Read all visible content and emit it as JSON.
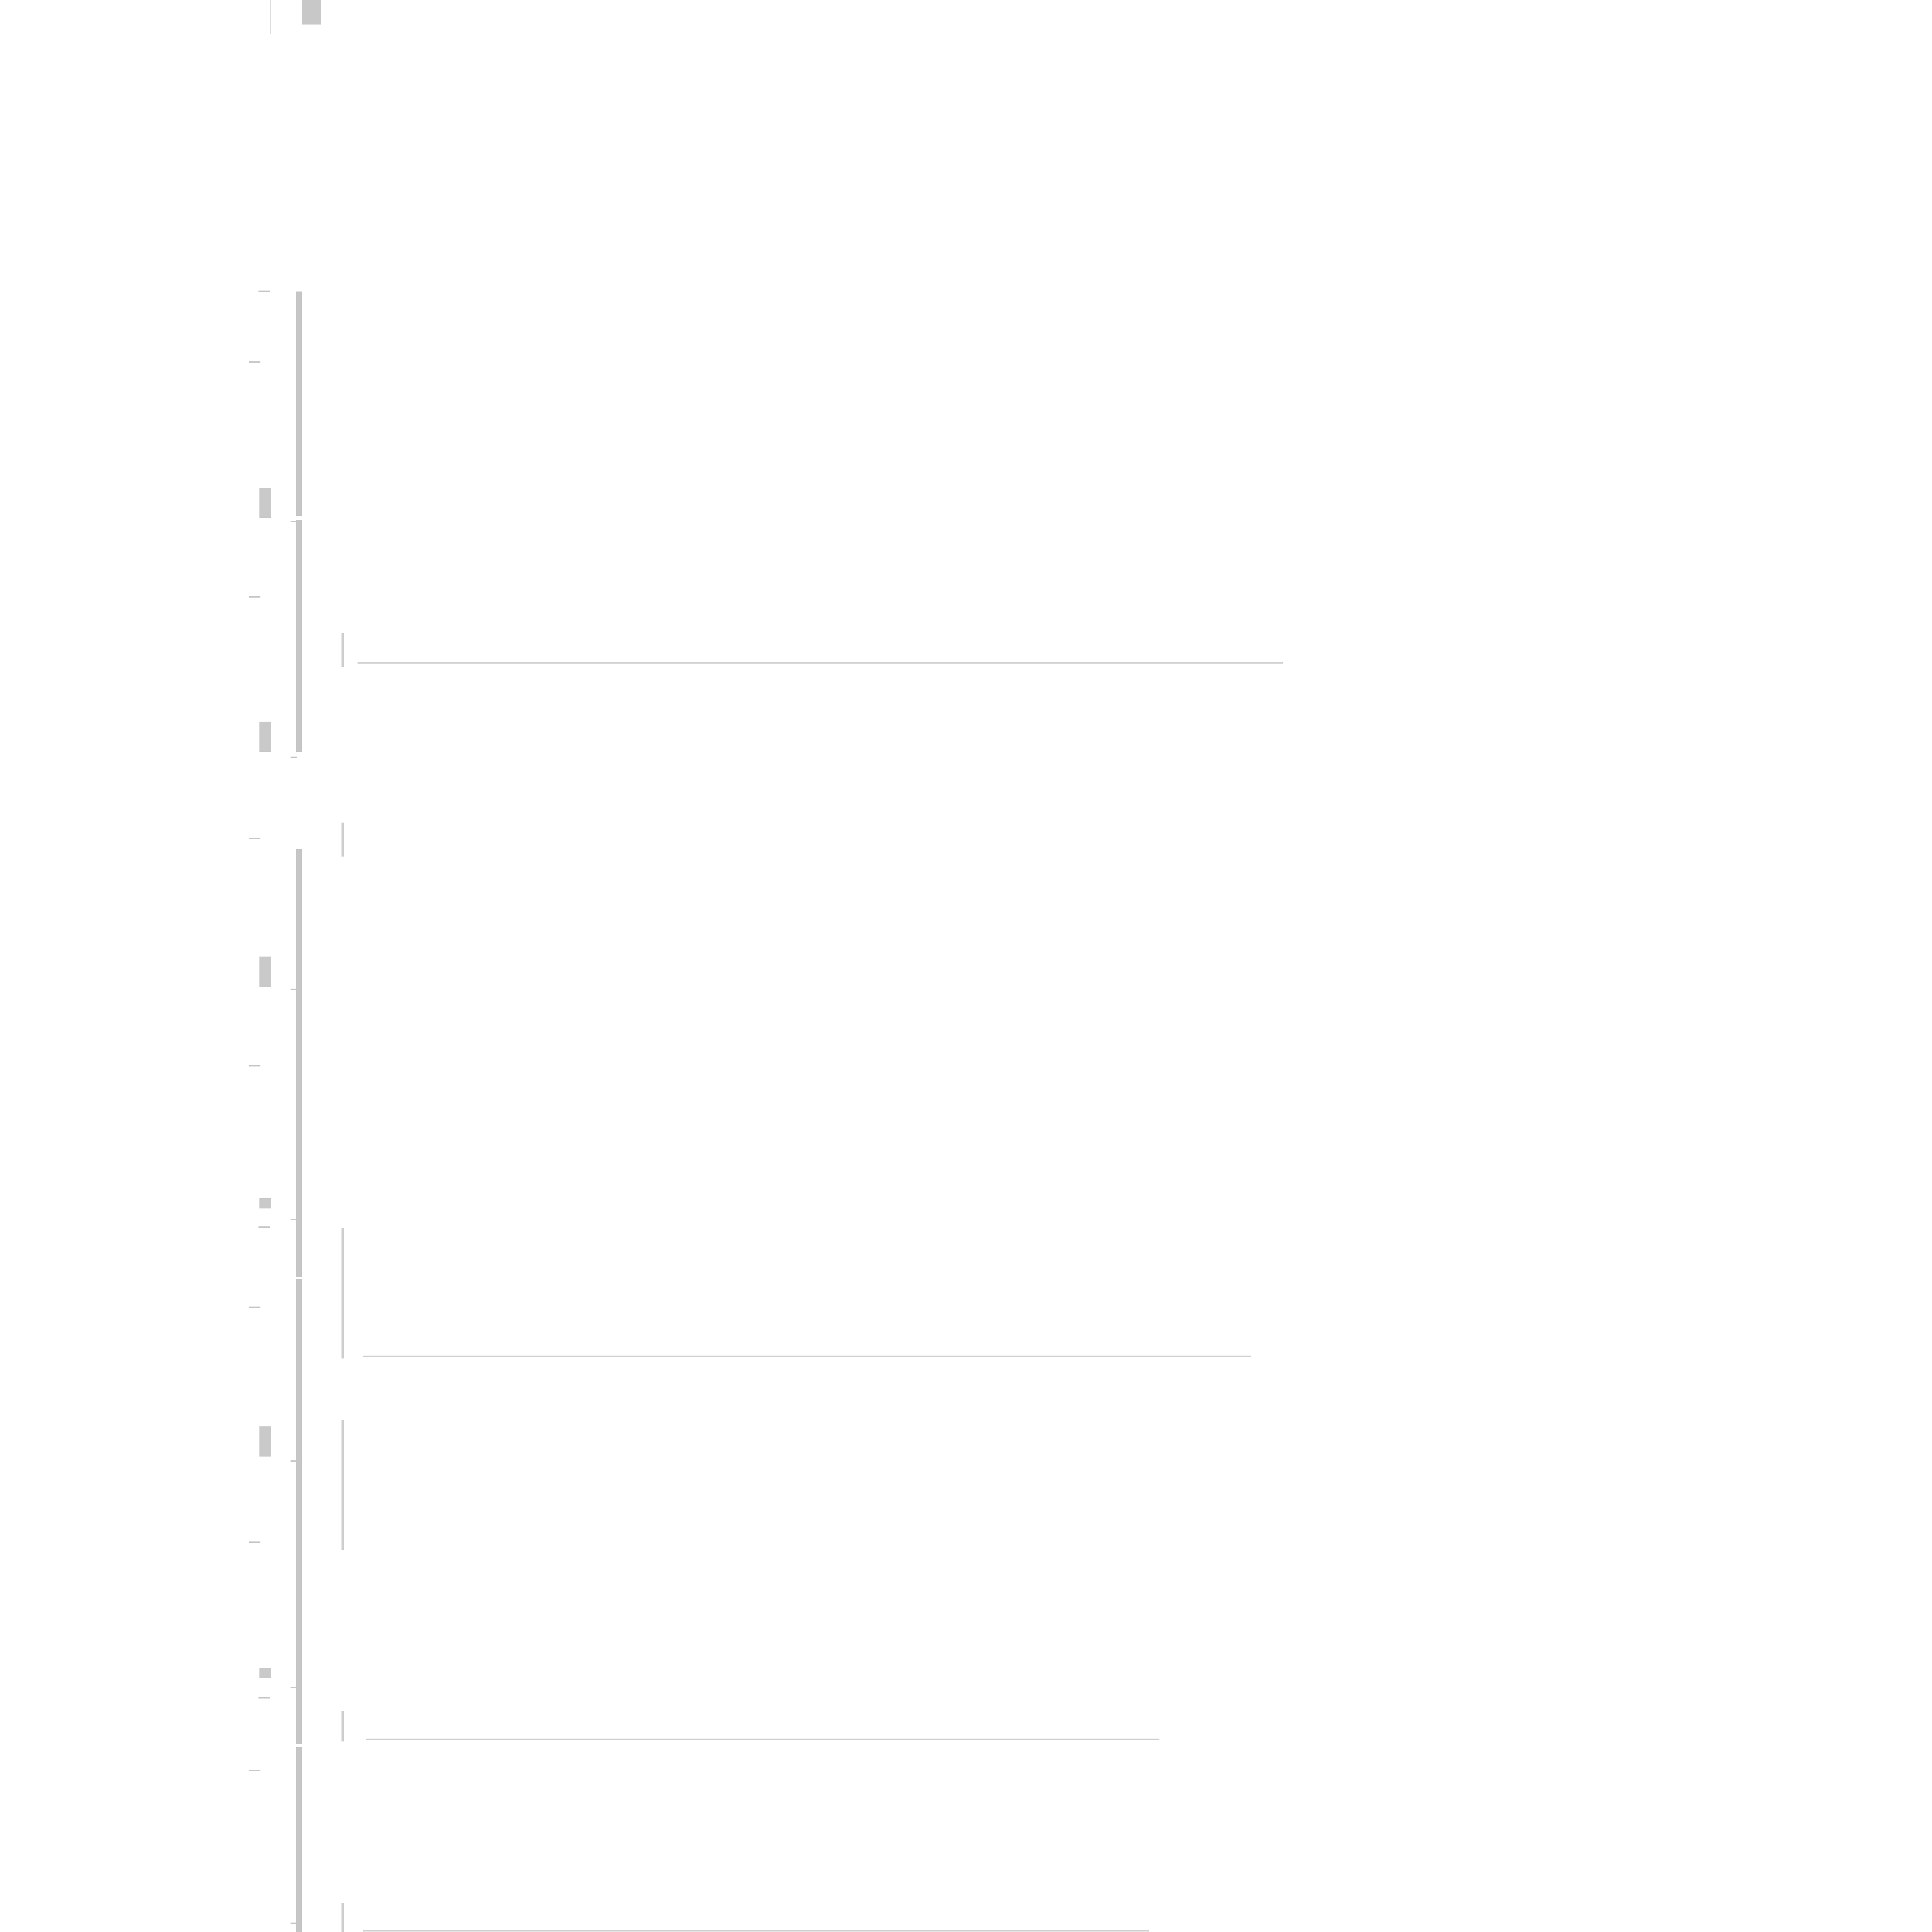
{
  "colors": {
    "background": "#ffffff",
    "rail": "#c6c6c6",
    "separator": "#d2d2d2",
    "marker": "#c9c9c9"
  },
  "sections": [
    {
      "id": "section-1"
    },
    {
      "id": "section-2"
    },
    {
      "id": "section-3"
    },
    {
      "id": "section-4"
    },
    {
      "id": "section-5"
    },
    {
      "id": "section-6"
    },
    {
      "id": "section-7"
    },
    {
      "id": "section-8"
    }
  ]
}
